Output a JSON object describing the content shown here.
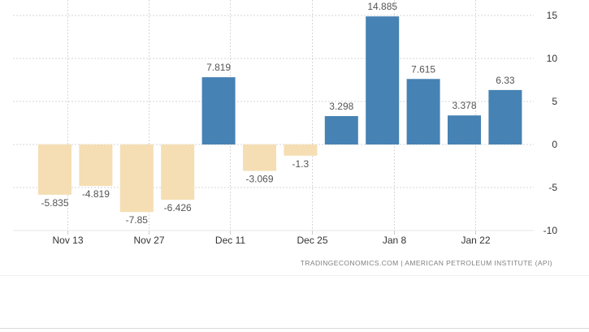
{
  "chart_data": {
    "type": "bar",
    "categories": [
      "",
      "",
      "",
      "",
      "",
      "",
      "",
      "",
      "",
      "",
      "",
      ""
    ],
    "values": [
      -5.835,
      -4.819,
      -7.85,
      -6.426,
      7.819,
      -3.069,
      -1.3,
      3.298,
      14.885,
      7.615,
      3.378,
      6.33
    ],
    "labels": [
      "-5.835",
      "-4.819",
      "-7.85",
      "-6.426",
      "7.819",
      "-3.069",
      "-1.3",
      "3.298",
      "14.885",
      "7.615",
      "3.378",
      "6.33"
    ],
    "x_ticks": [
      "Nov 13",
      "Nov 27",
      "Dec 11",
      "Dec 25",
      "Jan 8",
      "Jan 22"
    ],
    "y_ticks": [
      "15",
      "10",
      "5",
      "0",
      "-5",
      "-10"
    ],
    "ylim": [
      -10,
      15
    ],
    "title": "",
    "xlabel": "",
    "ylabel": "",
    "grid": true,
    "colors": {
      "positive": "#4682b4",
      "negative": "#f5deb3",
      "grid": "#d6d6d6",
      "axis_text": "#333333",
      "label_text": "#555555"
    }
  },
  "credit": {
    "text": "TRADINGECONOMICS.COM  |  AMERICAN PETROLEUM INSTITUTE (API)"
  }
}
